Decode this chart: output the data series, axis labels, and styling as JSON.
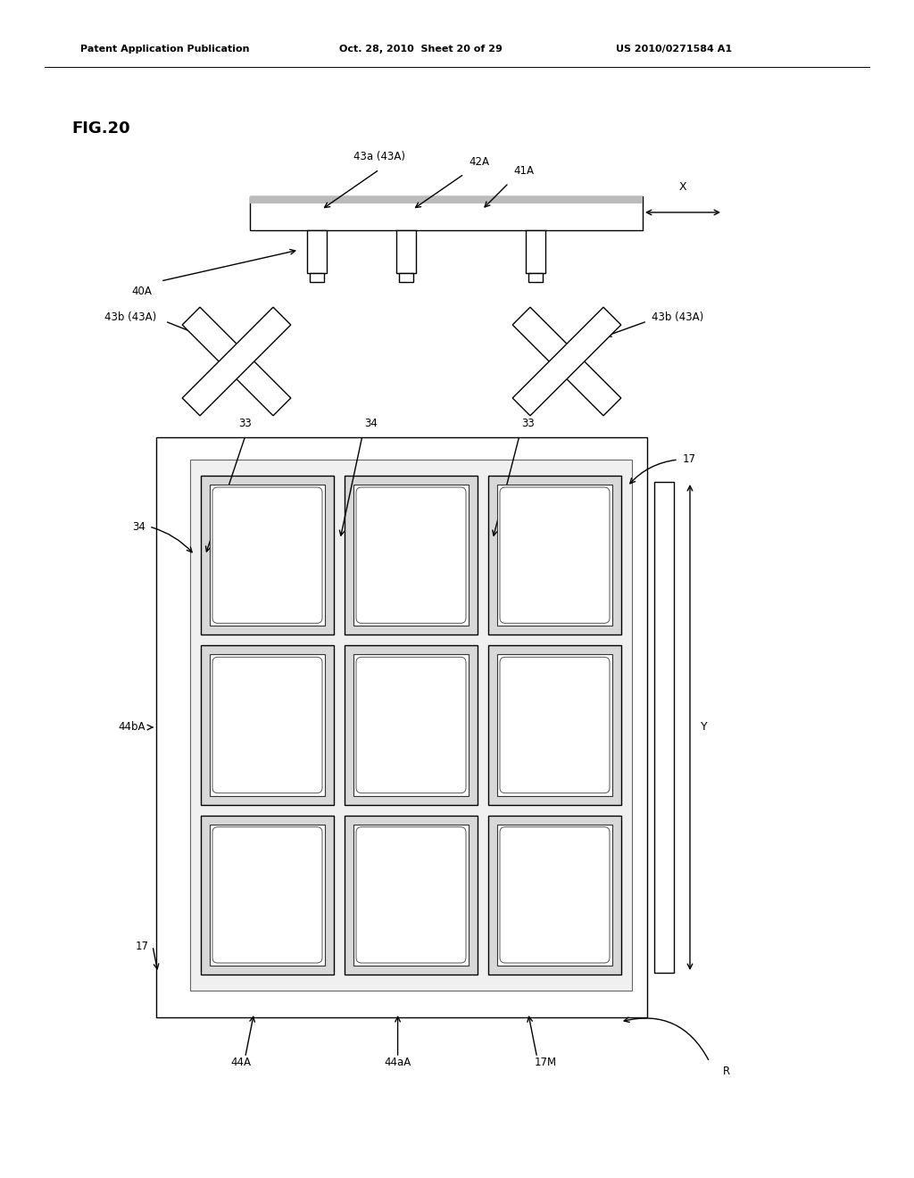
{
  "bg_color": "#ffffff",
  "title_text": "FIG.20",
  "header_left": "Patent Application Publication",
  "header_mid": "Oct. 28, 2010  Sheet 20 of 29",
  "header_right": "US 2010/0271584 A1"
}
